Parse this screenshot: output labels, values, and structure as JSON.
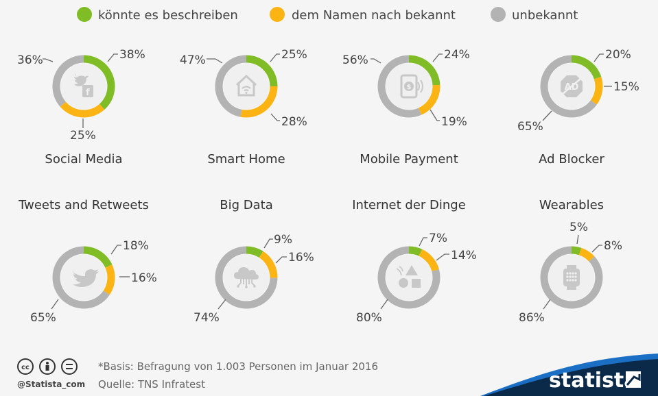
{
  "legend": [
    {
      "label": "könnte es beschreiben",
      "color": "#80bc25"
    },
    {
      "label": "dem Namen nach bekannt",
      "color": "#fbb414"
    },
    {
      "label": "unbekannt",
      "color": "#b3b3b3"
    }
  ],
  "footer": {
    "basis": "*Basis: Befragung von 1.003 Personen im Januar 2016",
    "source": "Quelle: TNS Infratest",
    "handle": "@Statista_com",
    "brand": "statista"
  },
  "chart_data": [
    {
      "type": "pie",
      "title": "Social Media",
      "icon": "social-media-icon",
      "series": [
        {
          "name": "könnte es beschreiben",
          "value": 38
        },
        {
          "name": "dem Namen nach bekannt",
          "value": 25
        },
        {
          "name": "unbekannt",
          "value": 36
        }
      ],
      "labels": [
        "38%",
        "25%",
        "36%"
      ]
    },
    {
      "type": "pie",
      "title": "Smart Home",
      "icon": "house-wifi-icon",
      "series": [
        {
          "name": "könnte es beschreiben",
          "value": 25
        },
        {
          "name": "dem Namen nach bekannt",
          "value": 28
        },
        {
          "name": "unbekannt",
          "value": 47
        }
      ],
      "labels": [
        "25%",
        "28%",
        "47%"
      ]
    },
    {
      "type": "pie",
      "title": "Mobile Payment",
      "icon": "mobile-payment-icon",
      "series": [
        {
          "name": "könnte es beschreiben",
          "value": 24
        },
        {
          "name": "dem Namen nach bekannt",
          "value": 19
        },
        {
          "name": "unbekannt",
          "value": 56
        }
      ],
      "labels": [
        "24%",
        "19%",
        "56%"
      ]
    },
    {
      "type": "pie",
      "title": "Ad Blocker",
      "icon": "ad-blocker-icon",
      "series": [
        {
          "name": "könnte es beschreiben",
          "value": 20
        },
        {
          "name": "dem Namen nach bekannt",
          "value": 15
        },
        {
          "name": "unbekannt",
          "value": 65
        }
      ],
      "labels": [
        "20%",
        "15%",
        "65%"
      ]
    },
    {
      "type": "pie",
      "title": "Tweets and Retweets",
      "icon": "twitter-bird-icon",
      "series": [
        {
          "name": "könnte es beschreiben",
          "value": 18
        },
        {
          "name": "dem Namen nach bekannt",
          "value": 16
        },
        {
          "name": "unbekannt",
          "value": 65
        }
      ],
      "labels": [
        "18%",
        "16%",
        "65%"
      ]
    },
    {
      "type": "pie",
      "title": "Big Data",
      "icon": "cloud-data-icon",
      "series": [
        {
          "name": "könnte es beschreiben",
          "value": 9
        },
        {
          "name": "dem Namen nach bekannt",
          "value": 16
        },
        {
          "name": "unbekannt",
          "value": 74
        }
      ],
      "labels": [
        "9%",
        "16%",
        "74%"
      ]
    },
    {
      "type": "pie",
      "title": "Internet der Dinge",
      "icon": "shapes-icon",
      "series": [
        {
          "name": "könnte es beschreiben",
          "value": 7
        },
        {
          "name": "dem Namen nach bekannt",
          "value": 14
        },
        {
          "name": "unbekannt",
          "value": 80
        }
      ],
      "labels": [
        "7%",
        "14%",
        "80%"
      ]
    },
    {
      "type": "pie",
      "title": "Wearables",
      "icon": "smartwatch-icon",
      "series": [
        {
          "name": "könnte es beschreiben",
          "value": 5
        },
        {
          "name": "dem Namen nach bekannt",
          "value": 8
        },
        {
          "name": "unbekannt",
          "value": 86
        }
      ],
      "labels": [
        "5%",
        "8%",
        "86%"
      ]
    }
  ]
}
